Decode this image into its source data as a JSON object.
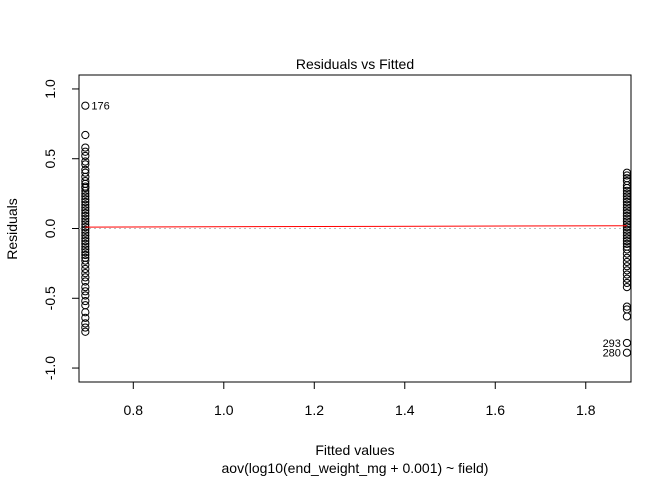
{
  "chart_data": {
    "type": "scatter",
    "title": "Residuals vs Fitted",
    "xlabel": "Fitted values",
    "subtitle": "aov(log10(end_weight_mg + 0.001) ~ field)",
    "ylabel": "Residuals",
    "xlim": [
      0.68,
      1.9
    ],
    "ylim": [
      -1.1,
      1.1
    ],
    "xticks": [
      "0.8",
      "1.0",
      "1.2",
      "1.4",
      "1.6",
      "1.8"
    ],
    "xtick_values": [
      0.8,
      1.0,
      1.2,
      1.4,
      1.6,
      1.8
    ],
    "yticks": [
      "-1.0",
      "-0.5",
      "0.0",
      "0.5",
      "1.0"
    ],
    "ytick_values": [
      -1.0,
      -0.5,
      0.0,
      0.5,
      1.0
    ],
    "grid": false,
    "reference_line": {
      "y": 0.0,
      "style": "dotted",
      "color": "#bebebe"
    },
    "smoother": {
      "color": "#ff0000",
      "x": [
        0.694,
        1.891
      ],
      "y": [
        0.01,
        0.02
      ]
    },
    "groups": [
      {
        "x": 0.694,
        "residuals": [
          0.88,
          0.67,
          0.58,
          0.55,
          0.52,
          0.48,
          0.46,
          0.42,
          0.4,
          0.37,
          0.34,
          0.32,
          0.3,
          0.29,
          0.27,
          0.25,
          0.23,
          0.21,
          0.19,
          0.17,
          0.15,
          0.13,
          0.11,
          0.09,
          0.07,
          0.05,
          0.03,
          0.01,
          -0.01,
          -0.03,
          -0.05,
          -0.07,
          -0.09,
          -0.11,
          -0.13,
          -0.15,
          -0.17,
          -0.19,
          -0.21,
          -0.23,
          -0.26,
          -0.29,
          -0.32,
          -0.35,
          -0.38,
          -0.42,
          -0.45,
          -0.48,
          -0.52,
          -0.55,
          -0.6,
          -0.64,
          -0.68,
          -0.71,
          -0.74
        ]
      },
      {
        "x": 1.891,
        "residuals": [
          0.4,
          0.38,
          0.36,
          0.34,
          0.31,
          0.29,
          0.27,
          0.25,
          0.23,
          0.21,
          0.19,
          0.17,
          0.15,
          0.13,
          0.11,
          0.09,
          0.07,
          0.05,
          0.03,
          0.01,
          -0.01,
          -0.03,
          -0.05,
          -0.07,
          -0.09,
          -0.11,
          -0.13,
          -0.15,
          -0.18,
          -0.21,
          -0.24,
          -0.27,
          -0.3,
          -0.33,
          -0.36,
          -0.39,
          -0.42,
          -0.56,
          -0.58,
          -0.63,
          -0.82,
          -0.89
        ]
      }
    ],
    "annotations": [
      {
        "label": "176",
        "x": 0.694,
        "y": 0.88,
        "side": "right"
      },
      {
        "label": "293",
        "x": 1.891,
        "y": -0.82,
        "side": "left"
      },
      {
        "label": "280",
        "x": 1.891,
        "y": -0.89,
        "side": "left"
      }
    ]
  }
}
